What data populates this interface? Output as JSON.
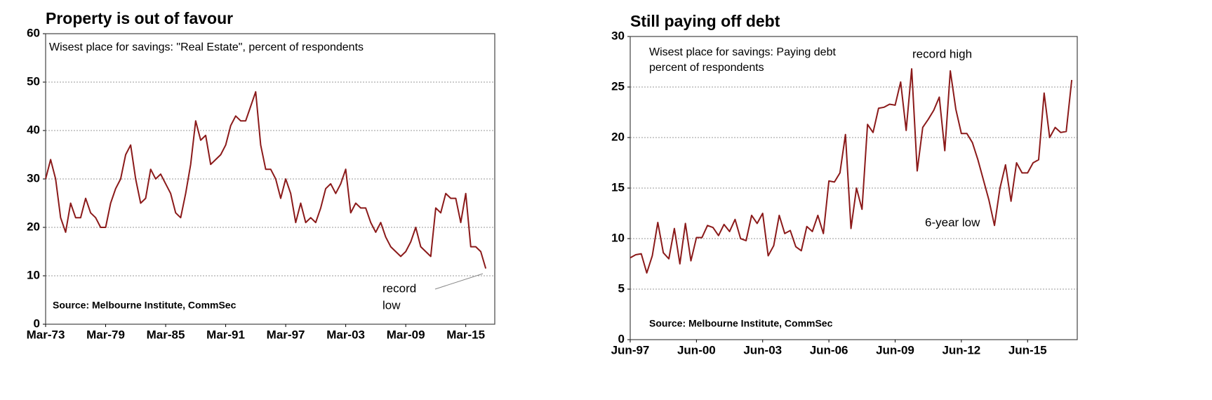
{
  "chart_data": [
    {
      "type": "line",
      "title": "Property is out of favour",
      "subtitle": [
        "Wisest place for savings: \"Real Estate\", percent of respondents"
      ],
      "source": "Source: Melbourne Institute, CommSec",
      "annotations": [
        [
          "record",
          "low"
        ]
      ],
      "categories": [
        "Mar-73",
        null,
        null,
        null,
        null,
        null,
        null,
        null,
        null,
        null,
        null,
        null,
        "Mar-79",
        null,
        null,
        null,
        null,
        null,
        null,
        null,
        null,
        null,
        null,
        null,
        "Mar-85",
        null,
        null,
        null,
        null,
        null,
        null,
        null,
        null,
        null,
        null,
        null,
        "Mar-91",
        null,
        null,
        null,
        null,
        null,
        null,
        null,
        null,
        null,
        null,
        null,
        "Mar-97",
        null,
        null,
        null,
        null,
        null,
        null,
        null,
        null,
        null,
        null,
        null,
        "Mar-03",
        null,
        null,
        null,
        null,
        null,
        null,
        null,
        null,
        null,
        null,
        null,
        "Mar-09",
        null,
        null,
        null,
        null,
        null,
        null,
        null,
        null,
        null,
        null,
        null,
        "Mar-15",
        null,
        null,
        null,
        null
      ],
      "series": [
        {
          "name": "Real Estate",
          "color": "#8b1a1a",
          "values": [
            30,
            34,
            30,
            22,
            19,
            25,
            22,
            22,
            26,
            23,
            22,
            20,
            20,
            25,
            28,
            30,
            35,
            37,
            30,
            25,
            26,
            32,
            30,
            31,
            29,
            27,
            23,
            22,
            27,
            33,
            42,
            38,
            39,
            33,
            34,
            35,
            37,
            41,
            43,
            42,
            42,
            45,
            48,
            37,
            32,
            32,
            30,
            26,
            30,
            27,
            21,
            25,
            21,
            22,
            21,
            24,
            28,
            29,
            27,
            29,
            32,
            23,
            25,
            24,
            24,
            21,
            19,
            21,
            18,
            16,
            15,
            14,
            15,
            17,
            20,
            16,
            15,
            14,
            24,
            23,
            27,
            26,
            26,
            21,
            27,
            16,
            16,
            15,
            11.5
          ]
        }
      ],
      "ylim": [
        0,
        60
      ],
      "yticks": [
        0,
        10,
        20,
        30,
        40,
        50,
        60
      ],
      "grid": true
    },
    {
      "type": "line",
      "title": "Still paying off debt",
      "subtitle": [
        "Wisest place for savings: Paying debt",
        "percent of respondents"
      ],
      "source": "Source: Melbourne Institute, CommSec",
      "annotations": [
        [
          "record high"
        ],
        [
          "6-year low"
        ]
      ],
      "categories": [
        "Jun-97",
        null,
        null,
        null,
        null,
        null,
        null,
        null,
        null,
        null,
        null,
        null,
        "Jun-00",
        null,
        null,
        null,
        null,
        null,
        null,
        null,
        null,
        null,
        null,
        null,
        "Jun-03",
        null,
        null,
        null,
        null,
        null,
        null,
        null,
        null,
        null,
        null,
        null,
        "Jun-06",
        null,
        null,
        null,
        null,
        null,
        null,
        null,
        null,
        null,
        null,
        null,
        "Jun-09",
        null,
        null,
        null,
        null,
        null,
        null,
        null,
        null,
        null,
        null,
        null,
        "Jun-12",
        null,
        null,
        null,
        null,
        null,
        null,
        null,
        null,
        null,
        null,
        null,
        "Jun-15",
        null,
        null,
        null,
        null,
        null,
        null,
        null,
        null
      ],
      "series": [
        {
          "name": "Paying debt",
          "color": "#8b1a1a",
          "values": [
            8.1,
            8.4,
            8.5,
            6.6,
            8.3,
            11.6,
            8.6,
            8.0,
            11.0,
            7.5,
            11.5,
            7.8,
            10.1,
            10.1,
            11.3,
            11.1,
            10.3,
            11.4,
            10.7,
            11.9,
            10.0,
            9.8,
            12.3,
            11.5,
            12.5,
            8.3,
            9.3,
            12.3,
            10.5,
            10.8,
            9.2,
            8.8,
            11.2,
            10.7,
            12.3,
            10.5,
            15.7,
            15.6,
            16.5,
            20.3,
            11.0,
            15.0,
            12.9,
            21.3,
            20.5,
            22.9,
            23.0,
            23.3,
            23.2,
            25.5,
            20.7,
            26.8,
            16.7,
            21.0,
            21.8,
            22.7,
            24.0,
            18.7,
            26.6,
            22.8,
            20.4,
            20.4,
            19.5,
            17.8,
            15.8,
            13.8,
            11.3,
            15.0,
            17.3,
            13.7,
            17.5,
            16.5,
            16.5,
            17.5,
            17.8,
            24.4,
            20.0,
            21.0,
            20.5,
            20.6,
            25.7
          ]
        }
      ],
      "ylim": [
        0,
        30
      ],
      "yticks": [
        0,
        5,
        10,
        15,
        20,
        25,
        30
      ],
      "grid": true
    }
  ]
}
